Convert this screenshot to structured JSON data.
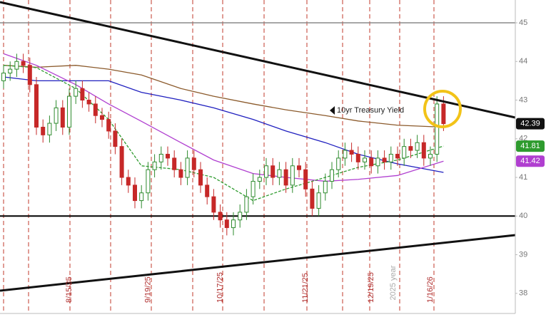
{
  "chart_data": {
    "type": "candlestick",
    "annotation": "10yr Treasury Yield",
    "extra_label": "2025 year",
    "categories": [
      null,
      null,
      null,
      null,
      null,
      null,
      null,
      null,
      null,
      null,
      "8/15/25",
      null,
      null,
      null,
      null,
      null,
      null,
      null,
      null,
      null,
      null,
      null,
      "9/19/25",
      null,
      null,
      null,
      null,
      null,
      null,
      null,
      null,
      null,
      null,
      "10/17/25",
      null,
      null,
      null,
      null,
      null,
      null,
      null,
      null,
      null,
      null,
      null,
      null,
      "11/21/25",
      null,
      null,
      null,
      null,
      null,
      null,
      null,
      null,
      null,
      "12/19/25",
      null,
      null,
      null,
      null,
      null,
      null,
      null,
      null,
      "1/16/26",
      null,
      null
    ],
    "open": [
      43.5,
      43.7,
      43.8,
      44.0,
      43.9,
      43.4,
      42.3,
      42.1,
      42.4,
      42.8,
      42.3,
      43.1,
      43.3,
      43.0,
      42.9,
      42.6,
      42.5,
      42.2,
      41.8,
      41.0,
      40.8,
      40.4,
      40.6,
      41.2,
      41.4,
      41.6,
      41.5,
      41.2,
      41.0,
      41.5,
      41.2,
      40.8,
      40.5,
      40.1,
      39.9,
      39.7,
      39.9,
      40.1,
      40.5,
      40.9,
      41.0,
      41.3,
      41.0,
      41.2,
      40.8,
      41.3,
      41.2,
      40.7,
      40.2,
      40.6,
      40.9,
      41.2,
      41.5,
      41.7,
      41.6,
      41.4,
      41.5,
      41.3,
      41.5,
      41.4,
      41.6,
      41.5,
      41.8,
      41.7,
      41.9,
      41.5,
      41.6,
      42.9
    ],
    "high": [
      43.9,
      44.0,
      44.2,
      44.2,
      44.1,
      43.6,
      42.5,
      42.6,
      43.0,
      43.0,
      43.3,
      43.5,
      43.5,
      43.2,
      43.1,
      42.8,
      42.7,
      42.4,
      42.0,
      41.2,
      41.0,
      40.8,
      41.4,
      41.6,
      41.8,
      41.8,
      41.7,
      41.4,
      41.7,
      41.7,
      41.4,
      41.0,
      40.7,
      40.3,
      40.1,
      40.1,
      40.3,
      40.7,
      41.1,
      41.2,
      41.5,
      41.5,
      41.4,
      41.4,
      41.5,
      41.5,
      41.4,
      40.9,
      40.8,
      41.1,
      41.4,
      41.7,
      41.9,
      41.9,
      41.8,
      41.7,
      41.7,
      41.7,
      41.7,
      41.8,
      41.8,
      42.0,
      42.0,
      42.1,
      42.1,
      41.8,
      43.1,
      43.1
    ],
    "low": [
      43.3,
      43.5,
      43.6,
      43.7,
      43.2,
      42.1,
      41.9,
      41.9,
      42.2,
      42.1,
      42.1,
      42.9,
      42.8,
      42.7,
      42.4,
      42.3,
      42.0,
      41.6,
      40.8,
      40.6,
      40.2,
      40.2,
      40.4,
      41.0,
      41.2,
      41.3,
      41.0,
      40.8,
      40.8,
      41.0,
      40.6,
      40.3,
      39.9,
      39.7,
      39.5,
      39.5,
      39.7,
      39.9,
      40.3,
      40.7,
      40.8,
      40.8,
      40.8,
      40.6,
      40.6,
      41.0,
      40.5,
      40.0,
      40.0,
      40.4,
      40.7,
      41.0,
      41.3,
      41.4,
      41.2,
      41.2,
      41.1,
      41.1,
      41.2,
      41.2,
      41.3,
      41.3,
      41.5,
      41.5,
      41.3,
      41.3,
      41.4,
      42.2
    ],
    "close": [
      43.7,
      43.8,
      44.0,
      43.9,
      43.4,
      42.3,
      42.1,
      42.4,
      42.8,
      42.3,
      43.1,
      43.3,
      43.0,
      42.9,
      42.6,
      42.5,
      42.2,
      41.8,
      41.0,
      40.8,
      40.4,
      40.6,
      41.2,
      41.4,
      41.6,
      41.5,
      41.2,
      41.0,
      41.5,
      41.2,
      40.8,
      40.5,
      40.1,
      39.9,
      39.7,
      39.9,
      40.1,
      40.5,
      40.9,
      41.0,
      41.3,
      41.0,
      41.2,
      40.8,
      41.3,
      41.2,
      40.7,
      40.2,
      40.6,
      40.9,
      41.2,
      41.5,
      41.7,
      41.6,
      41.4,
      41.5,
      41.3,
      41.5,
      41.4,
      41.6,
      41.5,
      41.8,
      41.7,
      41.9,
      41.5,
      41.6,
      42.9,
      42.39
    ],
    "up_color": "#2e8b2e",
    "down_color": "#c62828",
    "lines": [
      {
        "color": "#8b5a2b",
        "x": [
          0,
          5,
          11,
          16,
          21,
          27,
          32,
          38,
          43,
          49,
          54,
          60,
          67
        ],
        "values": [
          43.9,
          43.85,
          43.9,
          43.8,
          43.65,
          43.3,
          43.1,
          42.9,
          42.75,
          42.6,
          42.46,
          42.35,
          42.3
        ]
      },
      {
        "color": "#1f1fbf",
        "x": [
          0,
          5,
          11,
          16,
          21,
          27,
          32,
          38,
          43,
          49,
          54,
          60,
          67
        ],
        "values": [
          43.6,
          43.5,
          43.5,
          43.5,
          43.2,
          43.0,
          42.8,
          42.5,
          42.2,
          41.9,
          41.6,
          41.35,
          41.13
        ]
      },
      {
        "color": "#b03fd0",
        "x": [
          0,
          5,
          11,
          16,
          21,
          27,
          32,
          38,
          43,
          49,
          54,
          60,
          67
        ],
        "values": [
          44.2,
          43.9,
          43.4,
          42.9,
          42.45,
          41.9,
          41.45,
          41.1,
          41.0,
          40.9,
          40.95,
          41.05,
          41.42
        ]
      },
      {
        "color": "#2e9b2e",
        "x": [
          0,
          5,
          11,
          16,
          21,
          27,
          32,
          38,
          43,
          49,
          54,
          60,
          67
        ],
        "values": [
          43.9,
          43.84,
          43.3,
          42.5,
          41.3,
          41.2,
          41.0,
          40.4,
          40.7,
          41.0,
          41.26,
          41.45,
          41.81
        ]
      }
    ],
    "price_labels": [
      {
        "value": 42.39,
        "color": "#111111"
      },
      {
        "value": 41.81,
        "color": "#2e9b2e"
      },
      {
        "value": 41.42,
        "color": "#b03fd0"
      }
    ],
    "hlines": [
      {
        "value": 45,
        "color": "#8a8a8a"
      },
      {
        "value": 40,
        "color": "#000000"
      }
    ],
    "ylim": [
      37.48,
      45.59
    ],
    "yticks": [
      38,
      39,
      40,
      41,
      42,
      43,
      44,
      45
    ]
  }
}
